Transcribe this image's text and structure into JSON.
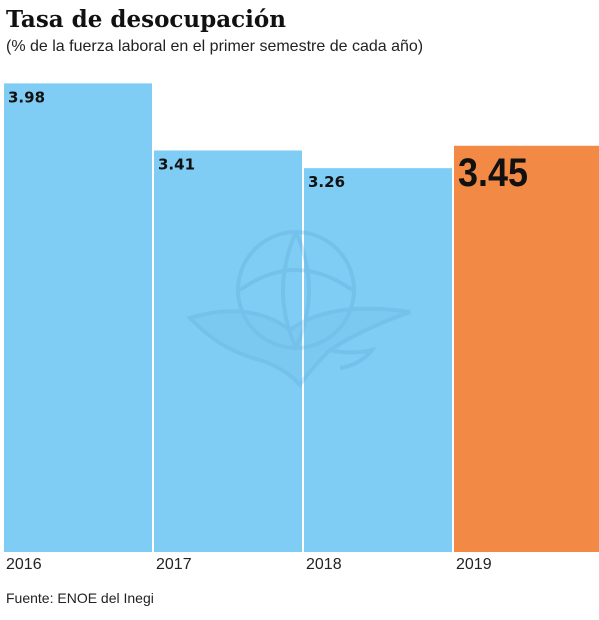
{
  "title": "Tasa de desocupación",
  "subtitle": "(% de la fuerza laboral en el primer semestre de cada año)",
  "source": "Fuente: ENOE del Inegi",
  "colors": {
    "bar": "#7fcdf5",
    "highlight": "#f28a45",
    "watermark": "#5aa6d4"
  },
  "watermark_icon": "eagle-globe-logo",
  "chart_data": {
    "type": "bar",
    "categories": [
      "2016",
      "2017",
      "2018",
      "2019"
    ],
    "values": [
      3.98,
      3.41,
      3.26,
      3.45
    ],
    "value_labels": [
      "3.98",
      "3.41",
      "3.26",
      "3.45"
    ],
    "highlight_index": 3,
    "title": "Tasa de desocupación",
    "xlabel": "",
    "ylabel": "",
    "ylim": [
      0,
      4.2
    ],
    "grid": false,
    "legend": "none"
  }
}
